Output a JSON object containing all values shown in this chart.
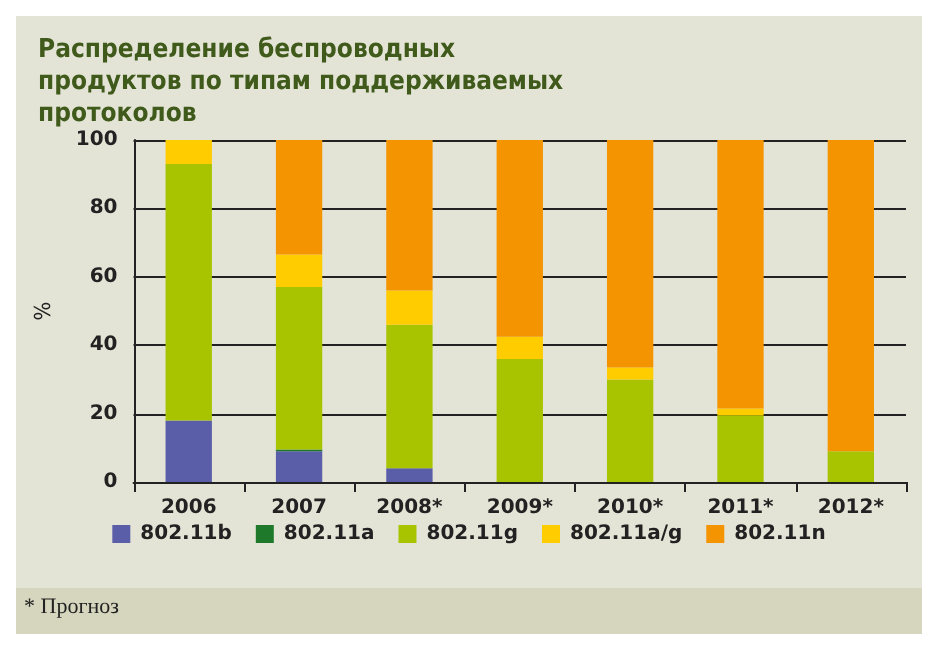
{
  "chart_data": {
    "type": "bar",
    "title": "Распределение беспроводных продуктов по типам поддерживаемых протоколов",
    "ylabel": "%",
    "categories": [
      "2006",
      "2007",
      "2008*",
      "2009*",
      "2010*",
      "2011*",
      "2012*"
    ],
    "stacked": true,
    "series": [
      {
        "name": "802.11b",
        "color": "#5a5ea8",
        "values": [
          18,
          9,
          4,
          0,
          0,
          0,
          0
        ]
      },
      {
        "name": "802.11a",
        "color": "#1e7a2a",
        "values": [
          0,
          0.5,
          0,
          0,
          0,
          0,
          0
        ]
      },
      {
        "name": "802.11g",
        "color": "#a8c400",
        "values": [
          75,
          47.5,
          42,
          36,
          30,
          19.5,
          9
        ]
      },
      {
        "name": "802.11a/g",
        "color": "#ffcc00",
        "values": [
          7,
          9.5,
          10,
          6.5,
          3.5,
          2,
          0
        ]
      },
      {
        "name": "802.11n",
        "color": "#f39400",
        "values": [
          0,
          33.5,
          44,
          57.5,
          66.5,
          78.5,
          91
        ]
      }
    ],
    "ylim": [
      0,
      100
    ],
    "yticks": [
      0,
      20,
      40,
      60,
      80,
      100
    ],
    "grid": "y",
    "legend": "bottom",
    "annotations": [
      "* Прогноз"
    ]
  }
}
